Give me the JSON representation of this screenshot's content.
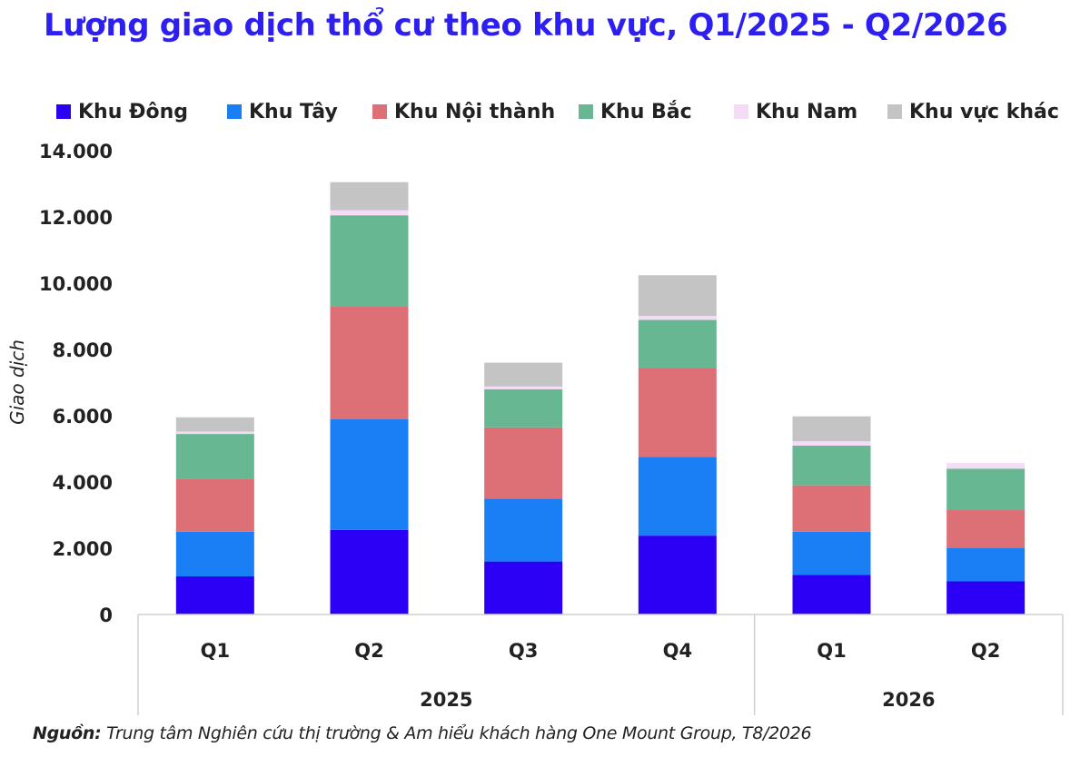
{
  "title": "Lượng giao dịch thổ cư theo khu vực, Q1/2025 - Q2/2026",
  "source": {
    "label": "Nguồn:",
    "text": "Trung tâm Nghiên cứu thị trường & Am hiểu khách hàng One Mount Group, T8/2026"
  },
  "chart_data": {
    "type": "bar",
    "stacked": true,
    "categories": [
      "Q1",
      "Q2",
      "Q3",
      "Q4",
      "Q1",
      "Q2"
    ],
    "groups": [
      {
        "label": "2025",
        "categories": [
          "Q1",
          "Q2",
          "Q3",
          "Q4"
        ]
      },
      {
        "label": "2026",
        "categories": [
          "Q1",
          "Q2"
        ]
      }
    ],
    "ylabel": "Giao dịch",
    "ylim": [
      0,
      14000
    ],
    "yticks": [
      0,
      2000,
      4000,
      6000,
      8000,
      10000,
      12000,
      14000
    ],
    "ytick_labels": [
      "0",
      "2.000",
      "4.000",
      "6.000",
      "8.000",
      "10.000",
      "12.000",
      "14.000"
    ],
    "legend_position": "top",
    "grid": false,
    "series": [
      {
        "name": "Khu Đông",
        "color": "#2b00f5",
        "values": [
          1150,
          2550,
          1600,
          2380,
          1200,
          1000
        ]
      },
      {
        "name": "Khu Tây",
        "color": "#1a7ff5",
        "values": [
          1350,
          3350,
          1900,
          2380,
          1300,
          1000
        ]
      },
      {
        "name": "Khu Nội thành",
        "color": "#dd6f76",
        "values": [
          1600,
          3400,
          2150,
          2680,
          1400,
          1150
        ]
      },
      {
        "name": "Khu Bắc",
        "color": "#67b892",
        "values": [
          1350,
          2750,
          1150,
          1450,
          1200,
          1250
        ]
      },
      {
        "name": "Khu Nam",
        "color": "#f4dcf6",
        "values": [
          70,
          150,
          80,
          120,
          130,
          170
        ]
      },
      {
        "name": "Khu vực khác",
        "color": "#c4c4c4",
        "values": [
          430,
          850,
          720,
          1230,
          750,
          0
        ]
      }
    ]
  }
}
